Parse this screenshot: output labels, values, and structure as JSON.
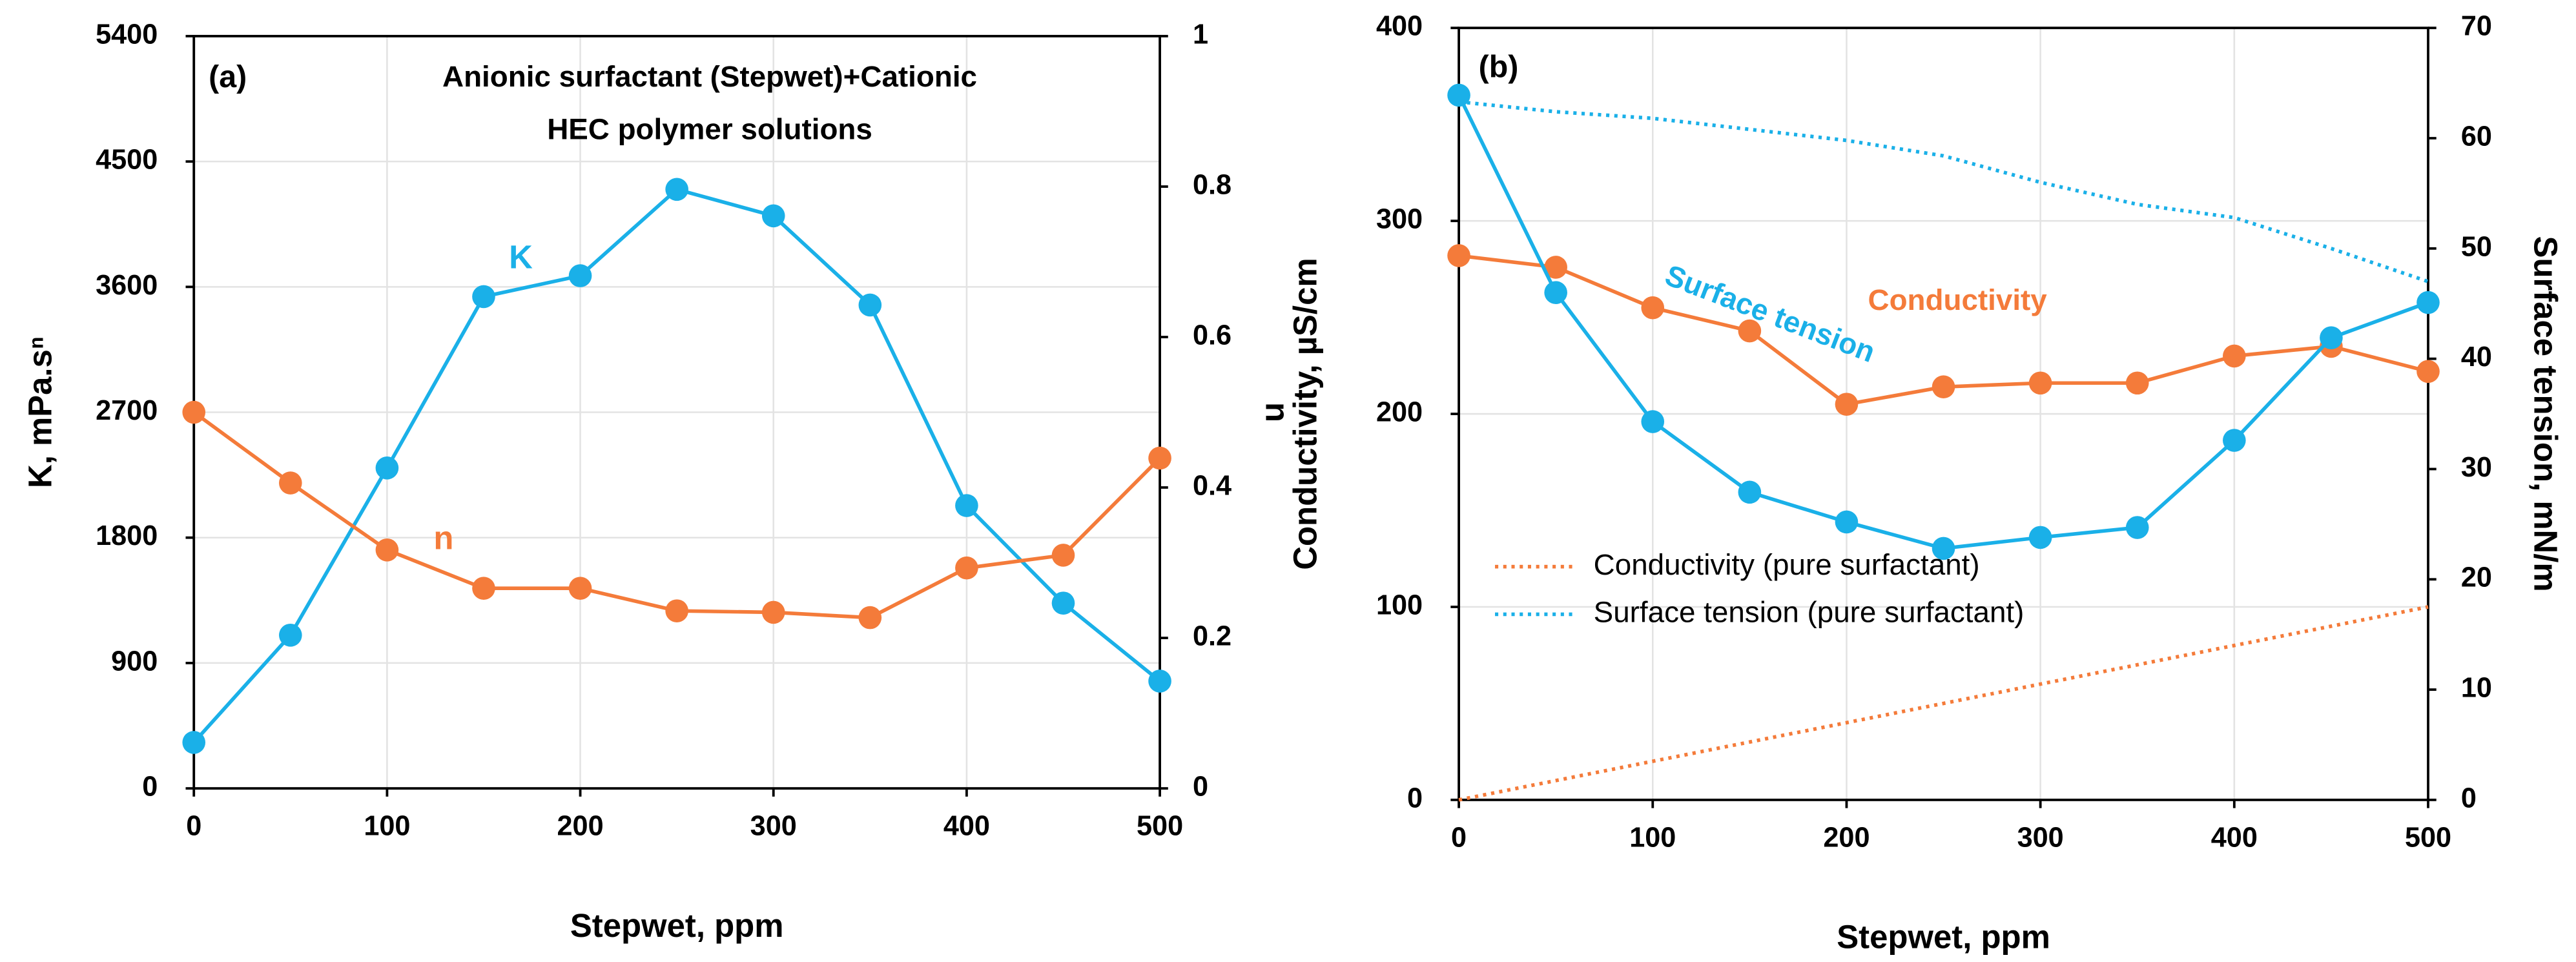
{
  "chart_data": [
    {
      "type": "line",
      "annotations": [
        "(a)",
        "Anionic surfactant (Stepwet)+Cationic",
        "HEC polymer solutions",
        "K",
        "n"
      ],
      "xlabel": "Stepwet, ppm",
      "ylabel": "K, mPa.sⁿ",
      "y2label": "n",
      "x": [
        0,
        50,
        100,
        150,
        200,
        250,
        300,
        350,
        400,
        450,
        500
      ],
      "xlim": [
        0,
        500
      ],
      "xticks": [
        0,
        100,
        200,
        300,
        400,
        500
      ],
      "ylim": [
        0,
        5400
      ],
      "yticks": [
        0,
        900,
        1800,
        2700,
        3600,
        4500,
        5400
      ],
      "y2lim": [
        0,
        1
      ],
      "y2ticks": [
        0,
        0.2,
        0.4,
        0.6,
        0.8,
        1
      ],
      "grid": true,
      "series": [
        {
          "color": "#1ab0e8",
          "marker": true,
          "values": [
            330,
            1100,
            2300,
            3530,
            3680,
            4300,
            4110,
            3470,
            2030,
            1330,
            770
          ]
        },
        {
          "color": "#f47b3a",
          "marker": true,
          "axis": "y2",
          "values": [
            0.5,
            0.406,
            0.317,
            0.266,
            0.266,
            0.236,
            0.234,
            0.227,
            0.293,
            0.31,
            0.439
          ]
        }
      ]
    },
    {
      "type": "line",
      "annotations": [
        "(b)",
        "Conductivity",
        "Surface tension"
      ],
      "xlabel": "Stepwet, ppm",
      "ylabel": "Conductivity, µS/cm",
      "y2label": "Surface tension, mN/m",
      "x": [
        0,
        50,
        100,
        150,
        200,
        250,
        300,
        350,
        400,
        450,
        500
      ],
      "xlim": [
        0,
        500
      ],
      "xticks": [
        0,
        100,
        200,
        300,
        400,
        500
      ],
      "ylim": [
        0,
        400
      ],
      "yticks": [
        0,
        100,
        200,
        300,
        400
      ],
      "y2lim": [
        0,
        70
      ],
      "y2ticks": [
        0,
        10,
        20,
        30,
        40,
        50,
        60,
        70
      ],
      "grid": true,
      "legend": "lower left",
      "series": [
        {
          "color": "#f47b3a",
          "marker": true,
          "values": [
            282,
            276,
            255,
            243,
            205,
            214,
            216,
            216,
            230,
            235,
            222
          ]
        },
        {
          "color": "#1ab0e8",
          "marker": true,
          "axis": "y2",
          "values": [
            63.9,
            46.0,
            34.3,
            27.9,
            25.2,
            22.8,
            23.8,
            24.7,
            32.6,
            41.9,
            45.1
          ]
        },
        {
          "name": "Conductivity (pure surfactant)",
          "color": "#f47b3a",
          "dash": "dotted",
          "values": [
            0,
            10,
            20,
            30,
            40,
            50,
            60,
            70,
            80,
            90,
            100
          ]
        },
        {
          "name": "Surface tension (pure surfactant)",
          "color": "#1ab0e8",
          "dash": "dotted",
          "axis": "y2",
          "values": [
            63.3,
            62.4,
            61.8,
            60.8,
            59.8,
            58.4,
            56,
            54,
            52.8,
            50,
            47
          ]
        }
      ]
    }
  ]
}
